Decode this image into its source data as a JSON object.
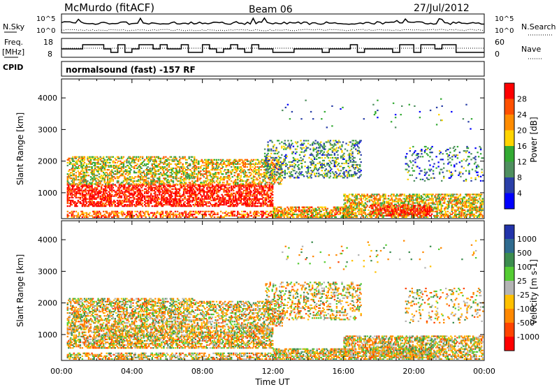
{
  "header": {
    "station": "McMurdo (fitACF)",
    "beam": "Beam 06",
    "date": "27/Jul/2012",
    "mode": "normalsound (fast) -157 RF"
  },
  "noise_panel": {
    "left_label": "N.Sky",
    "right_label": "N.Search",
    "left_ticks": [
      "10^5",
      "10^0"
    ],
    "right_ticks": [
      "10^5",
      "10^0"
    ]
  },
  "freq_panel": {
    "left_label_top": "Freq.",
    "left_label_bottom": "[MHz]",
    "right_label": "Nave",
    "cpid_label": "CPID",
    "left_ticks": [
      "18",
      "8"
    ],
    "right_ticks": [
      "60",
      "0"
    ]
  },
  "colors": {
    "power": [
      "#0000ff",
      "#2a3fa8",
      "#4f8f5f",
      "#33aa33",
      "#ffd400",
      "#ff8c00",
      "#ff5000",
      "#ff0000"
    ],
    "velocity": [
      "#2233aa",
      "#2f6b8f",
      "#3c8c4e",
      "#55cc33",
      "#b4b4b4",
      "#ffc000",
      "#ff8800",
      "#ff4400",
      "#ff0000"
    ]
  },
  "chart_data": [
    {
      "type": "heatmap",
      "name": "Power",
      "ylabel": "Slant Range [km]",
      "ylim": [
        180,
        4600
      ],
      "yticks": [
        "1000",
        "2000",
        "3000",
        "4000"
      ],
      "xlim_hours": [
        0,
        24
      ],
      "colorbar_label": "Power [dB]",
      "colorbar_ticks": [
        "4",
        "8",
        "12",
        "16",
        "20",
        "24",
        "28"
      ],
      "colorbar_range": [
        0,
        32
      ]
    },
    {
      "type": "heatmap",
      "name": "Velocity",
      "ylabel": "Slant Range [km]",
      "ylim": [
        180,
        4600
      ],
      "yticks": [
        "1000",
        "2000",
        "3000",
        "4000"
      ],
      "xlim_hours": [
        0,
        24
      ],
      "colorbar_label": "Velocity [m s-1]",
      "colorbar_ticks": [
        "1000",
        "500",
        "100",
        "25",
        "-25",
        "-100",
        "-500",
        "-1000"
      ],
      "xticks": [
        "00:00",
        "04:00",
        "08:00",
        "12:00",
        "16:00",
        "20:00",
        "00:00"
      ],
      "xlabel": "Time UT"
    }
  ]
}
